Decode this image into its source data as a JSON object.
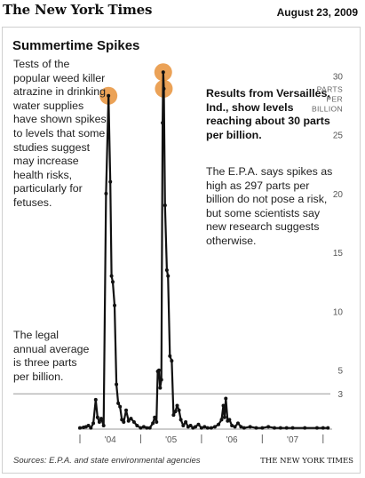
{
  "header": {
    "masthead": "The New York Times",
    "date": "August 23, 2009"
  },
  "graphic": {
    "title": "Summertime Spikes",
    "intro_note": "Tests of the popular weed killer atrazine in drinking water supplies have shown spikes to levels that some studies suggest may increase health risks, particularly for fetuses.",
    "legal_note": "The legal annual average is three parts per billion.",
    "result_note": "Results from Versailles, Ind., show levels reaching about 30 parts per billion.",
    "epa_note": "The E.P.A. says spikes as high as 297 parts per billion do not pose a risk, but some scientists say new research suggests otherwise.",
    "source": "Sources: E.P.A. and state environmental agencies",
    "credit": "THE NEW YORK TIMES"
  },
  "colors": {
    "line": "#111111",
    "highlight": "#e8923a",
    "reference_line": "#999999",
    "grid": "#dddddd"
  },
  "chart_data": {
    "type": "line",
    "title": "Summertime Spikes",
    "xlabel": "",
    "ylabel": "PARTS PER BILLION",
    "ylim": [
      0,
      31
    ],
    "yticks": [
      3,
      5,
      10,
      15,
      20,
      25,
      30
    ],
    "ytick_labels": [
      "3",
      "5",
      "10",
      "15",
      "20",
      "25",
      "30"
    ],
    "xtick_labels": [
      "'04",
      "'05",
      "'06",
      "'07"
    ],
    "xtick_positions": [
      2004,
      2005,
      2006,
      2007
    ],
    "reference_line": {
      "y": 3,
      "label": "The legal annual average is three parts per billion."
    },
    "highlights": [
      {
        "x": 2003.97,
        "y": 28.3
      },
      {
        "x": 2004.87,
        "y": 30.3
      },
      {
        "x": 2004.88,
        "y": 28.9
      }
    ],
    "series": [
      {
        "x": [
          2003.5,
          2003.56,
          2003.6,
          2003.64,
          2003.68,
          2003.72,
          2003.76,
          2003.79,
          2003.82,
          2003.85,
          2003.89,
          2003.93,
          2003.97,
          2004.0,
          2004.02,
          2004.04,
          2004.07,
          2004.1,
          2004.13,
          2004.16,
          2004.19,
          2004.22,
          2004.26,
          2004.3,
          2004.34,
          2004.39,
          2004.44,
          2004.5,
          2004.55,
          2004.6,
          2004.65,
          2004.7,
          2004.73,
          2004.76,
          2004.78,
          2004.8,
          2004.82,
          2004.84,
          2004.86,
          2004.87,
          2004.88,
          2004.9,
          2004.93,
          2004.95,
          2004.98,
          2005.01,
          2005.04,
          2005.07,
          2005.1,
          2005.13,
          2005.16,
          2005.2,
          2005.24,
          2005.28,
          2005.32,
          2005.36,
          2005.4,
          2005.45,
          2005.5,
          2005.55,
          2005.6,
          2005.66,
          2005.72,
          2005.78,
          2005.83,
          2005.86,
          2005.88,
          2005.9,
          2005.93,
          2005.96,
          2006.0,
          2006.05,
          2006.1,
          2006.15,
          2006.2,
          2006.3,
          2006.4,
          2006.5,
          2006.6,
          2006.7,
          2006.8,
          2006.9,
          2007.0,
          2007.2,
          2007.4,
          2007.5,
          2007.58
        ],
        "values": [
          0.1,
          0.15,
          0.2,
          0.3,
          0.1,
          0.5,
          2.5,
          1.0,
          0.6,
          0.9,
          0.3,
          20.0,
          28.3,
          21.0,
          13.0,
          12.5,
          10.5,
          3.8,
          2.2,
          1.9,
          0.8,
          0.6,
          1.6,
          0.7,
          0.9,
          0.6,
          0.3,
          0.1,
          0.2,
          0.1,
          0.1,
          0.5,
          1.0,
          0.6,
          4.9,
          5.0,
          3.5,
          4.2,
          26.0,
          30.3,
          28.9,
          19.0,
          13.5,
          13.0,
          6.2,
          5.8,
          1.2,
          1.5,
          2.0,
          1.6,
          0.8,
          0.3,
          0.6,
          0.2,
          0.3,
          0.1,
          0.2,
          0.4,
          0.1,
          0.2,
          0.1,
          0.1,
          0.2,
          0.4,
          0.8,
          2.0,
          1.0,
          2.6,
          0.7,
          0.8,
          0.3,
          0.2,
          0.5,
          0.2,
          0.1,
          0.2,
          0.1,
          0.1,
          0.2,
          0.1,
          0.1,
          0.1,
          0.1,
          0.1,
          0.1,
          0.1,
          0.1
        ]
      }
    ]
  }
}
